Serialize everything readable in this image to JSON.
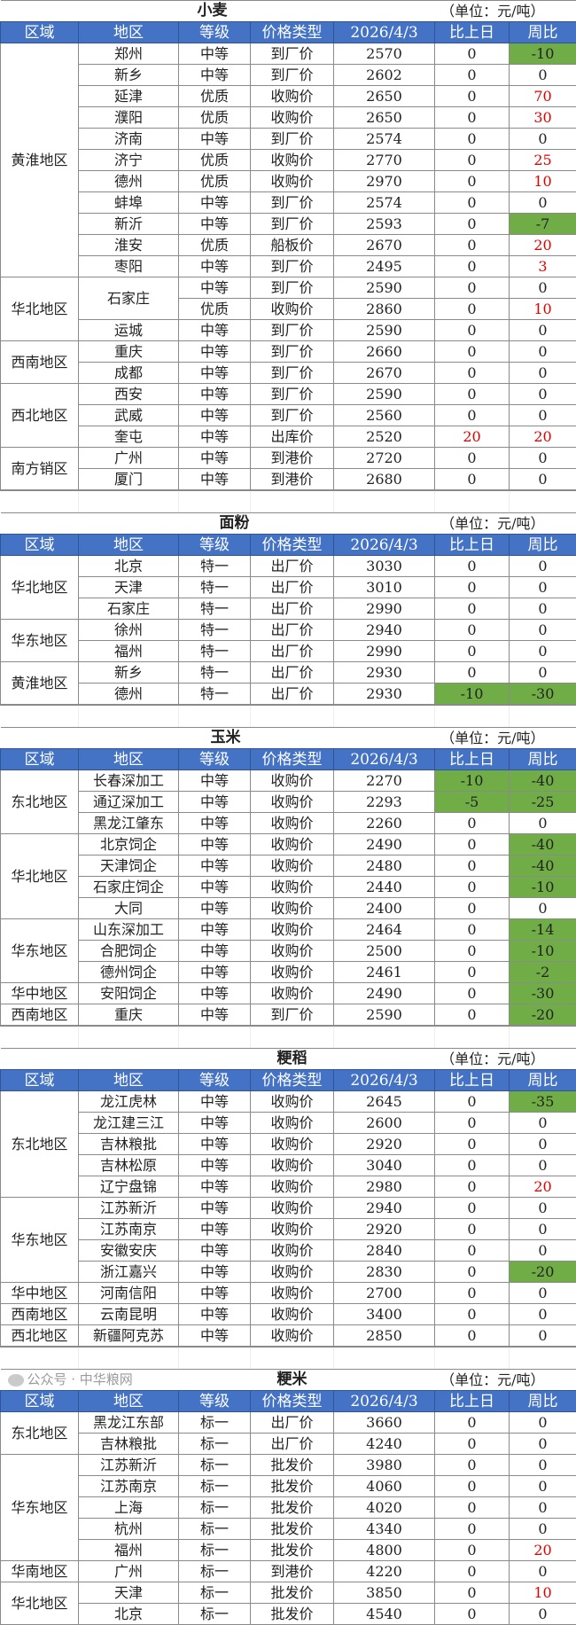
{
  "headers": [
    "区域",
    "地区",
    "等级",
    "价格类型",
    "2026/4/3",
    "比上日",
    "周比"
  ],
  "unit": "（单位：元/吨）",
  "colors": {
    "header_bg": "#4472c4",
    "decrease_bg": "#70ad47",
    "increase_text": "#e00000"
  },
  "watermark": "公众号 · 中华粮网",
  "tables": [
    {
      "title": "小麦",
      "title_offset": "wheat",
      "groups": [
        {
          "region": "黄淮地区",
          "rows": [
            {
              "area": "郑州",
              "grade": "中等",
              "price_type": "到厂价",
              "price": "2570",
              "day": "0",
              "week": "-10",
              "week_style": "green"
            },
            {
              "area": "新乡",
              "grade": "中等",
              "price_type": "到厂价",
              "price": "2602",
              "day": "0",
              "week": "0"
            },
            {
              "area": "延津",
              "grade": "优质",
              "price_type": "收购价",
              "price": "2650",
              "day": "0",
              "week": "70",
              "week_style": "red"
            },
            {
              "area": "濮阳",
              "grade": "优质",
              "price_type": "收购价",
              "price": "2650",
              "day": "0",
              "week": "30",
              "week_style": "red"
            },
            {
              "area": "济南",
              "grade": "中等",
              "price_type": "到厂价",
              "price": "2574",
              "day": "0",
              "week": "0"
            },
            {
              "area": "济宁",
              "grade": "优质",
              "price_type": "收购价",
              "price": "2770",
              "day": "0",
              "week": "25",
              "week_style": "red"
            },
            {
              "area": "德州",
              "grade": "优质",
              "price_type": "收购价",
              "price": "2970",
              "day": "0",
              "week": "10",
              "week_style": "red"
            },
            {
              "area": "蚌埠",
              "grade": "中等",
              "price_type": "到厂价",
              "price": "2574",
              "day": "0",
              "week": "0"
            },
            {
              "area": "新沂",
              "grade": "中等",
              "price_type": "到厂价",
              "price": "2593",
              "day": "0",
              "week": "-7",
              "week_style": "green"
            },
            {
              "area": "淮安",
              "grade": "优质",
              "price_type": "船板价",
              "price": "2670",
              "day": "0",
              "week": "20",
              "week_style": "red"
            },
            {
              "area": "枣阳",
              "grade": "中等",
              "price_type": "到厂价",
              "price": "2495",
              "day": "0",
              "week": "3",
              "week_style": "red"
            }
          ]
        },
        {
          "region": "华北地区",
          "rows": [
            {
              "area": "石家庄",
              "grade": "中等",
              "price_type": "到厂价",
              "price": "2590",
              "day": "0",
              "week": "0"
            },
            {
              "area": "石家庄",
              "grade": "优质",
              "price_type": "收购价",
              "price": "2860",
              "day": "0",
              "week": "10",
              "week_style": "red"
            },
            {
              "area": "运城",
              "grade": "中等",
              "price_type": "到厂价",
              "price": "2590",
              "day": "0",
              "week": "0"
            }
          ]
        },
        {
          "region": "西南地区",
          "rows": [
            {
              "area": "重庆",
              "grade": "中等",
              "price_type": "到厂价",
              "price": "2660",
              "day": "0",
              "week": "0"
            },
            {
              "area": "成都",
              "grade": "中等",
              "price_type": "到厂价",
              "price": "2670",
              "day": "0",
              "week": "0"
            }
          ]
        },
        {
          "region": "西北地区",
          "rows": [
            {
              "area": "西安",
              "grade": "中等",
              "price_type": "到厂价",
              "price": "2590",
              "day": "0",
              "week": "0"
            },
            {
              "area": "武威",
              "grade": "中等",
              "price_type": "到厂价",
              "price": "2560",
              "day": "0",
              "week": "0"
            },
            {
              "area": "奎屯",
              "grade": "中等",
              "price_type": "出库价",
              "price": "2520",
              "day": "20",
              "day_style": "red",
              "week": "20",
              "week_style": "red"
            }
          ]
        },
        {
          "region": "南方销区",
          "rows": [
            {
              "area": "广州",
              "grade": "中等",
              "price_type": "到港价",
              "price": "2720",
              "day": "0",
              "week": "0"
            },
            {
              "area": "厦门",
              "grade": "中等",
              "price_type": "到港价",
              "price": "2680",
              "day": "0",
              "week": "0"
            }
          ]
        }
      ]
    },
    {
      "title": "面粉",
      "groups": [
        {
          "region": "华北地区",
          "rows": [
            {
              "area": "北京",
              "grade": "特一",
              "price_type": "出厂价",
              "price": "3030",
              "day": "0",
              "week": "0"
            },
            {
              "area": "天津",
              "grade": "特一",
              "price_type": "出厂价",
              "price": "3010",
              "day": "0",
              "week": "0"
            },
            {
              "area": "石家庄",
              "grade": "特一",
              "price_type": "出厂价",
              "price": "2990",
              "day": "0",
              "week": "0"
            }
          ]
        },
        {
          "region": "华东地区",
          "rows": [
            {
              "area": "徐州",
              "grade": "特一",
              "price_type": "出厂价",
              "price": "2940",
              "day": "0",
              "week": "0"
            },
            {
              "area": "福州",
              "grade": "特一",
              "price_type": "出厂价",
              "price": "2990",
              "day": "0",
              "week": "0"
            }
          ]
        },
        {
          "region": "黄淮地区",
          "rows": [
            {
              "area": "新乡",
              "grade": "特一",
              "price_type": "出厂价",
              "price": "2930",
              "day": "0",
              "week": "0"
            },
            {
              "area": "德州",
              "grade": "特一",
              "price_type": "出厂价",
              "price": "2930",
              "day": "-10",
              "day_style": "green",
              "week": "-30",
              "week_style": "green"
            }
          ]
        }
      ]
    },
    {
      "title": "玉米",
      "groups": [
        {
          "region": "东北地区",
          "rows": [
            {
              "area": "长春深加工",
              "grade": "中等",
              "price_type": "收购价",
              "price": "2270",
              "day": "-10",
              "day_style": "green",
              "week": "-40",
              "week_style": "green"
            },
            {
              "area": "通辽深加工",
              "grade": "中等",
              "price_type": "收购价",
              "price": "2293",
              "day": "-5",
              "day_style": "green",
              "week": "-25",
              "week_style": "green"
            },
            {
              "area": "黑龙江肇东",
              "grade": "中等",
              "price_type": "收购价",
              "price": "2260",
              "day": "0",
              "week": "0"
            }
          ]
        },
        {
          "region": "华北地区",
          "rows": [
            {
              "area": "北京饲企",
              "grade": "中等",
              "price_type": "收购价",
              "price": "2490",
              "day": "0",
              "week": "-40",
              "week_style": "green"
            },
            {
              "area": "天津饲企",
              "grade": "中等",
              "price_type": "收购价",
              "price": "2480",
              "day": "0",
              "week": "-40",
              "week_style": "green"
            },
            {
              "area": "石家庄饲企",
              "grade": "中等",
              "price_type": "收购价",
              "price": "2440",
              "day": "0",
              "week": "-10",
              "week_style": "green"
            },
            {
              "area": "大同",
              "grade": "中等",
              "price_type": "收购价",
              "price": "2400",
              "day": "0",
              "week": "0"
            }
          ]
        },
        {
          "region": "华东地区",
          "rows": [
            {
              "area": "山东深加工",
              "grade": "中等",
              "price_type": "收购价",
              "price": "2464",
              "day": "0",
              "week": "-14",
              "week_style": "green"
            },
            {
              "area": "合肥饲企",
              "grade": "中等",
              "price_type": "收购价",
              "price": "2500",
              "day": "0",
              "week": "-10",
              "week_style": "green"
            },
            {
              "area": "德州饲企",
              "grade": "中等",
              "price_type": "收购价",
              "price": "2461",
              "day": "0",
              "week": "-2",
              "week_style": "green"
            }
          ]
        },
        {
          "region": "华中地区",
          "rows": [
            {
              "area": "安阳饲企",
              "grade": "中等",
              "price_type": "收购价",
              "price": "2490",
              "day": "0",
              "week": "-30",
              "week_style": "green"
            }
          ]
        },
        {
          "region": "西南地区",
          "rows": [
            {
              "area": "重庆",
              "grade": "中等",
              "price_type": "到厂价",
              "price": "2590",
              "day": "0",
              "week": "-20",
              "week_style": "green"
            }
          ]
        }
      ]
    },
    {
      "title": "粳稻",
      "groups": [
        {
          "region": "东北地区",
          "rows": [
            {
              "area": "龙江虎林",
              "grade": "中等",
              "price_type": "收购价",
              "price": "2645",
              "day": "0",
              "week": "-35",
              "week_style": "green"
            },
            {
              "area": "龙江建三江",
              "grade": "中等",
              "price_type": "收购价",
              "price": "2600",
              "day": "0",
              "week": "0"
            },
            {
              "area": "吉林粮批",
              "grade": "中等",
              "price_type": "收购价",
              "price": "2920",
              "day": "0",
              "week": "0"
            },
            {
              "area": "吉林松原",
              "grade": "中等",
              "price_type": "收购价",
              "price": "3040",
              "day": "0",
              "week": "0"
            },
            {
              "area": "辽宁盘锦",
              "grade": "中等",
              "price_type": "收购价",
              "price": "2980",
              "day": "0",
              "week": "20",
              "week_style": "red"
            }
          ]
        },
        {
          "region": "华东地区",
          "rows": [
            {
              "area": "江苏新沂",
              "grade": "中等",
              "price_type": "收购价",
              "price": "2940",
              "day": "0",
              "week": "0"
            },
            {
              "area": "江苏南京",
              "grade": "中等",
              "price_type": "收购价",
              "price": "2920",
              "day": "0",
              "week": "0"
            },
            {
              "area": "安徽安庆",
              "grade": "中等",
              "price_type": "收购价",
              "price": "2840",
              "day": "0",
              "week": "0"
            },
            {
              "area": "浙江嘉兴",
              "grade": "中等",
              "price_type": "收购价",
              "price": "2830",
              "day": "0",
              "week": "-20",
              "week_style": "green"
            }
          ]
        },
        {
          "region": "华中地区",
          "rows": [
            {
              "area": "河南信阳",
              "grade": "中等",
              "price_type": "收购价",
              "price": "2700",
              "day": "0",
              "week": "0"
            }
          ]
        },
        {
          "region": "西南地区",
          "rows": [
            {
              "area": "云南昆明",
              "grade": "中等",
              "price_type": "收购价",
              "price": "3400",
              "day": "0",
              "week": "0"
            }
          ]
        },
        {
          "region": "西北地区",
          "rows": [
            {
              "area": "新疆阿克苏",
              "grade": "中等",
              "price_type": "收购价",
              "price": "2850",
              "day": "0",
              "week": "0"
            }
          ]
        }
      ]
    },
    {
      "title": "粳米",
      "groups": [
        {
          "region": "东北地区",
          "rows": [
            {
              "area": "黑龙江东部",
              "grade": "标一",
              "price_type": "出厂价",
              "price": "3660",
              "day": "0",
              "week": "0"
            },
            {
              "area": "吉林粮批",
              "grade": "标一",
              "price_type": "出厂价",
              "price": "4240",
              "day": "0",
              "week": "0"
            }
          ]
        },
        {
          "region": "华东地区",
          "rows": [
            {
              "area": "江苏新沂",
              "grade": "标一",
              "price_type": "批发价",
              "price": "3980",
              "day": "0",
              "week": "0"
            },
            {
              "area": "江苏南京",
              "grade": "标一",
              "price_type": "批发价",
              "price": "4060",
              "day": "0",
              "week": "0"
            },
            {
              "area": "上海",
              "grade": "标一",
              "price_type": "批发价",
              "price": "4020",
              "day": "0",
              "week": "0"
            },
            {
              "area": "杭州",
              "grade": "标一",
              "price_type": "批发价",
              "price": "4340",
              "day": "0",
              "week": "0"
            },
            {
              "area": "福州",
              "grade": "标一",
              "price_type": "批发价",
              "price": "4800",
              "day": "0",
              "week": "20",
              "week_style": "red"
            }
          ]
        },
        {
          "region": "华南地区",
          "rows": [
            {
              "area": "广州",
              "grade": "标一",
              "price_type": "到港价",
              "price": "4220",
              "day": "0",
              "week": "0"
            }
          ]
        },
        {
          "region": "华北地区",
          "rows": [
            {
              "area": "天津",
              "grade": "标一",
              "price_type": "批发价",
              "price": "3850",
              "day": "0",
              "week": "10",
              "week_style": "red"
            },
            {
              "area": "北京",
              "grade": "标一",
              "price_type": "批发价",
              "price": "4540",
              "day": "0",
              "week": "0"
            }
          ]
        }
      ]
    }
  ]
}
